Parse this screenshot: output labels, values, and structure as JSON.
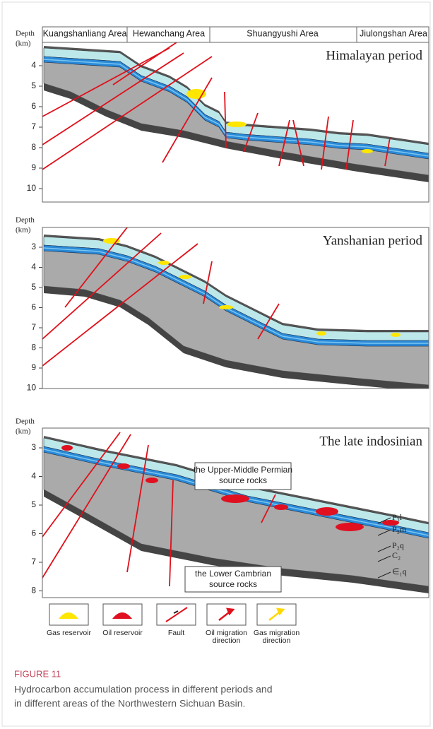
{
  "panels": [
    {
      "title": "Himalayan period",
      "depth_label": "Depth",
      "unit_label": "(km)",
      "depth_ticks": [
        4,
        5,
        6,
        7,
        8,
        9,
        10
      ],
      "areas": [
        "Kuangshanliang Area",
        "Hewanchang Area",
        "Shuangyushi Area",
        "Jiulongshan Area"
      ]
    },
    {
      "title": "Yanshanian period",
      "depth_label": "Depth",
      "unit_label": "(km)",
      "depth_ticks": [
        3,
        4,
        5,
        6,
        7,
        8,
        9,
        10
      ]
    },
    {
      "title": "The late indosinian",
      "depth_label": "Depth",
      "unit_label": "(km)",
      "depth_ticks": [
        3,
        4,
        5,
        6,
        7,
        8
      ],
      "notes": [
        [
          "the Upper-Middle Permian",
          "source rocks"
        ],
        [
          "the Lower Cambrian",
          "source rocks"
        ]
      ],
      "strata": [
        "P₃l",
        "P₂m",
        "P₂q",
        "C₂",
        "∈₁q"
      ]
    }
  ],
  "legend": [
    [
      "Gas reservoir"
    ],
    [
      "Oil reservoir"
    ],
    [
      "Fault"
    ],
    [
      "Oil migration",
      "direction"
    ],
    [
      "Gas migration",
      "direction"
    ]
  ],
  "caption": {
    "label": "FIGURE 11",
    "lines": [
      "Hydrocarbon accumulation process in different periods and",
      "in different areas of the Northwestern Sichuan Basin."
    ]
  }
}
